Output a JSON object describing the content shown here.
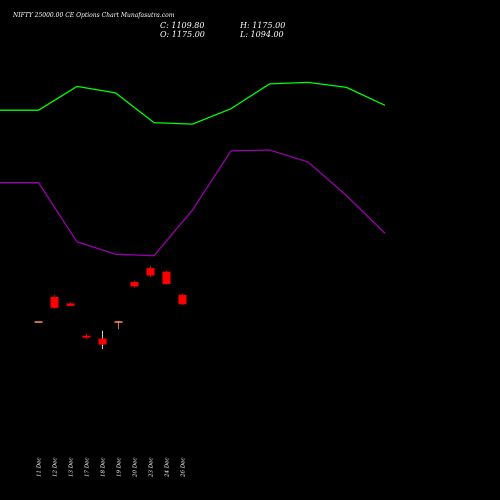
{
  "chart_data": {
    "type": "candlestick",
    "title": "NIFTY 25000.00 CE Options Chart Munafasutra.com",
    "ohlc_labels": {
      "close": "C: 1109.80",
      "high": "H: 1175.00",
      "open": "O: 1175.00",
      "low": "L: 1094.00"
    },
    "categories": [
      "11 Dec",
      "12 Dec",
      "13 Dec",
      "17 Dec",
      "18 Dec",
      "19 Dec",
      "20 Dec",
      "23 Dec",
      "24 Dec",
      "26 Dec"
    ],
    "candles": [
      {
        "date": "11 Dec",
        "open": 1505,
        "high": 1505,
        "low": 1503,
        "close": 1503
      },
      {
        "date": "12 Dec",
        "open": 1554,
        "high": 1558,
        "low": 1530,
        "close": 1532
      },
      {
        "date": "13 Dec",
        "open": 1541,
        "high": 1543,
        "low": 1535,
        "close": 1536
      },
      {
        "date": "17 Dec",
        "open": 1476,
        "high": 1480,
        "low": 1469,
        "close": 1472
      },
      {
        "date": "18 Dec",
        "open": 1470,
        "high": 1486,
        "low": 1449,
        "close": 1458
      },
      {
        "date": "19 Dec",
        "open": 1503,
        "high": 1506,
        "low": 1489,
        "close": 1505
      },
      {
        "date": "20 Dec",
        "open": 1584,
        "high": 1587,
        "low": 1573,
        "close": 1575
      },
      {
        "date": "23 Dec",
        "open": 1612,
        "high": 1617,
        "low": 1594,
        "close": 1597
      },
      {
        "date": "24 Dec",
        "open": 1605,
        "high": 1607,
        "low": 1578,
        "close": 1580
      },
      {
        "date": "26 Dec",
        "open": 1558,
        "high": 1561,
        "low": 1538,
        "close": 1539
      }
    ],
    "colors": {
      "up": "#00ff33",
      "down": "#ff0000",
      "neutral_up": "#ff8c66",
      "upper_line": "#00ff00",
      "lower_line": "#9900aa",
      "background": "#000000",
      "text": "#ffffff"
    },
    "upper_line": [
      {
        "x": 0,
        "y": 1930
      },
      {
        "x": 1,
        "y": 1930
      },
      {
        "x": 2,
        "y": 1978
      },
      {
        "x": 3,
        "y": 1965
      },
      {
        "x": 4,
        "y": 1905
      },
      {
        "x": 5,
        "y": 1902
      },
      {
        "x": 6,
        "y": 1933
      },
      {
        "x": 7,
        "y": 1983
      },
      {
        "x": 8,
        "y": 1986
      },
      {
        "x": 9,
        "y": 1976
      },
      {
        "x": 10,
        "y": 1940
      }
    ],
    "lower_line": [
      {
        "x": 0,
        "y": 1784
      },
      {
        "x": 1,
        "y": 1784
      },
      {
        "x": 2,
        "y": 1665
      },
      {
        "x": 3,
        "y": 1640
      },
      {
        "x": 4,
        "y": 1637
      },
      {
        "x": 5,
        "y": 1729
      },
      {
        "x": 6,
        "y": 1848
      },
      {
        "x": 7,
        "y": 1850
      },
      {
        "x": 8,
        "y": 1826
      },
      {
        "x": 9,
        "y": 1758
      },
      {
        "x": 10,
        "y": 1682
      }
    ],
    "ylim": [
      1145,
      2152
    ],
    "grid": false,
    "legend": "none"
  }
}
